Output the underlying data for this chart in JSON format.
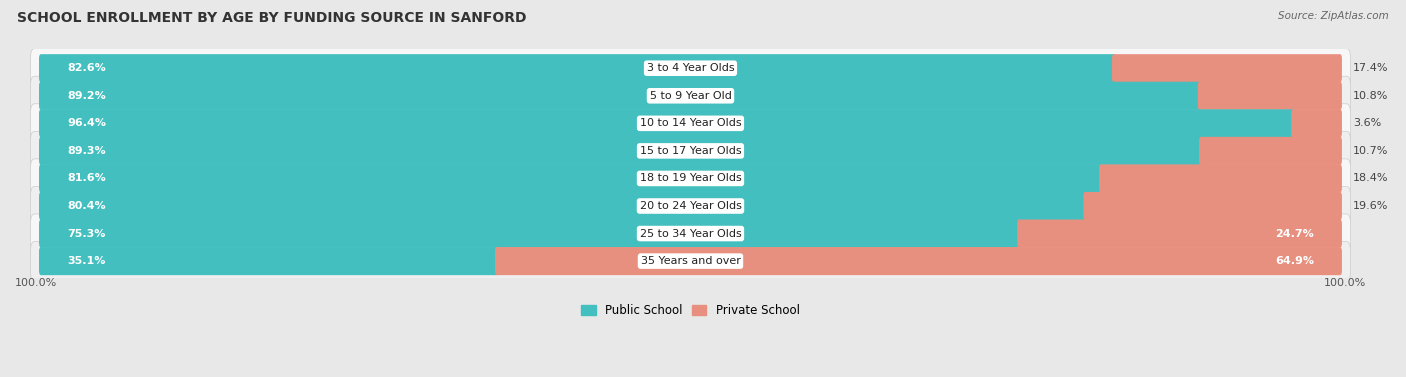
{
  "title": "SCHOOL ENROLLMENT BY AGE BY FUNDING SOURCE IN SANFORD",
  "source": "Source: ZipAtlas.com",
  "categories": [
    "3 to 4 Year Olds",
    "5 to 9 Year Old",
    "10 to 14 Year Olds",
    "15 to 17 Year Olds",
    "18 to 19 Year Olds",
    "20 to 24 Year Olds",
    "25 to 34 Year Olds",
    "35 Years and over"
  ],
  "public_values": [
    82.6,
    89.2,
    96.4,
    89.3,
    81.6,
    80.4,
    75.3,
    35.1
  ],
  "private_values": [
    17.4,
    10.8,
    3.6,
    10.7,
    18.4,
    19.6,
    24.7,
    64.9
  ],
  "public_color": "#43BFBF",
  "private_color": "#E8907F",
  "bg_outer_color": "#E8E8E8",
  "bg_row_even": "#F7F7F7",
  "bg_row_odd": "#EFEFEF",
  "title_fontsize": 10,
  "label_fontsize": 8,
  "value_fontsize": 8,
  "legend_fontsize": 8.5,
  "source_fontsize": 7.5
}
